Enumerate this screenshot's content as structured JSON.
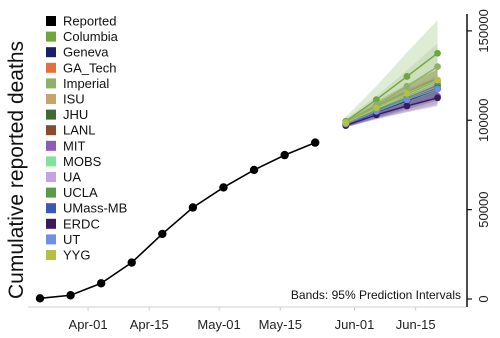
{
  "chart_data": {
    "type": "line",
    "ylabel": "Cumulative reported deaths",
    "xlim": [
      "2020-03-21",
      "2020-06-24"
    ],
    "ylim": [
      0,
      160000
    ],
    "x_ticks": [
      {
        "date": "2020-04-01",
        "label": "Apr-01"
      },
      {
        "date": "2020-04-15",
        "label": "Apr-15"
      },
      {
        "date": "2020-05-01",
        "label": "May-01"
      },
      {
        "date": "2020-05-15",
        "label": "May-15"
      },
      {
        "date": "2020-06-01",
        "label": "Jun-01"
      },
      {
        "date": "2020-06-15",
        "label": "Jun-15"
      }
    ],
    "y_ticks": [
      {
        "value": 0,
        "label": "0"
      },
      {
        "value": 50000,
        "label": "50000"
      },
      {
        "value": 100000,
        "label": "100000"
      },
      {
        "value": 150000,
        "label": "150000"
      }
    ],
    "grid": false,
    "legend_position": "top-left",
    "annotation": "Bands: 95% Prediction Intervals",
    "reported": {
      "name": "Reported",
      "color": "#000000",
      "x": [
        "2020-03-21",
        "2020-03-28",
        "2020-04-04",
        "2020-04-11",
        "2020-04-18",
        "2020-04-25",
        "2020-05-02",
        "2020-05-09",
        "2020-05-16",
        "2020-05-23"
      ],
      "y": [
        400,
        2100,
        8800,
        20400,
        36400,
        51200,
        62400,
        72200,
        80500,
        87500
      ]
    },
    "forecast_x": [
      "2020-05-30",
      "2020-06-06",
      "2020-06-13",
      "2020-06-20"
    ],
    "series": [
      {
        "name": "Columbia",
        "color": "#6ea83c",
        "values": [
          99500,
          111500,
          124500,
          137500
        ],
        "lower": [
          97000,
          104000,
          110000,
          115000
        ],
        "upper": [
          102000,
          119000,
          138000,
          156000
        ]
      },
      {
        "name": "Geneva",
        "color": "#1a1f6b",
        "values": [
          97500,
          104500,
          111000,
          117500
        ],
        "lower": [
          96000,
          101000,
          106000,
          111000
        ],
        "upper": [
          99000,
          108000,
          116000,
          124000
        ]
      },
      {
        "name": "GA_Tech",
        "color": "#e0713a",
        "values": [
          98000,
          106000,
          113500,
          121000
        ],
        "lower": [
          96500,
          102500,
          108000,
          113500
        ],
        "upper": [
          99500,
          109500,
          119000,
          128500
        ]
      },
      {
        "name": "Imperial",
        "color": "#8fb06a",
        "values": [
          99000,
          108500,
          119000,
          130000
        ],
        "lower": [
          97000,
          103500,
          110000,
          117000
        ],
        "upper": [
          101000,
          113500,
          128000,
          143000
        ]
      },
      {
        "name": "ISU",
        "color": "#c7a46a",
        "values": [
          97500,
          105000,
          112000,
          119000
        ],
        "lower": [
          96000,
          101500,
          107000,
          112000
        ],
        "upper": [
          99000,
          108500,
          117000,
          126000
        ]
      },
      {
        "name": "JHU",
        "color": "#3d6b33",
        "values": [
          98500,
          107000,
          114500,
          121500
        ],
        "lower": [
          97000,
          103500,
          109000,
          114500
        ],
        "upper": [
          100000,
          110500,
          120000,
          128500
        ]
      },
      {
        "name": "LANL",
        "color": "#8a4b2e",
        "values": [
          98000,
          106000,
          113500,
          120000
        ],
        "lower": [
          96800,
          103000,
          109500,
          115500
        ],
        "upper": [
          99200,
          109000,
          117500,
          124500
        ]
      },
      {
        "name": "MIT",
        "color": "#8e5cb7",
        "values": [
          97500,
          103500,
          108500,
          113500
        ],
        "lower": [
          96500,
          101000,
          105000,
          109000
        ],
        "upper": [
          98500,
          106000,
          112000,
          118000
        ]
      },
      {
        "name": "MOBS",
        "color": "#7fe39c",
        "values": [
          98500,
          106500,
          114000,
          121500
        ],
        "lower": [
          97000,
          103000,
          109000,
          115000
        ],
        "upper": [
          100000,
          110000,
          119000,
          128000
        ]
      },
      {
        "name": "UA",
        "color": "#c6a1e6",
        "values": [
          98000,
          105500,
          113000,
          120500
        ],
        "lower": [
          96500,
          102000,
          108000,
          114000
        ],
        "upper": [
          99500,
          109000,
          118000,
          127000
        ]
      },
      {
        "name": "UCLA",
        "color": "#5a9b4a",
        "values": [
          98000,
          105500,
          112500,
          119500
        ],
        "lower": [
          96800,
          102500,
          108500,
          114500
        ],
        "upper": [
          99200,
          108500,
          116500,
          124500
        ]
      },
      {
        "name": "UMass-MB",
        "color": "#3e58b5",
        "values": [
          97500,
          104500,
          111500,
          118000
        ],
        "lower": [
          96000,
          101500,
          107000,
          112500
        ],
        "upper": [
          99000,
          107500,
          116000,
          123500
        ]
      },
      {
        "name": "ERDC",
        "color": "#3b1c5a",
        "values": [
          97000,
          103000,
          108000,
          112500
        ],
        "lower": [
          96000,
          100500,
          104500,
          108000
        ],
        "upper": [
          98000,
          105500,
          111500,
          117000
        ]
      },
      {
        "name": "UT",
        "color": "#6e8fe3",
        "values": [
          98000,
          105000,
          111500,
          117500
        ],
        "lower": [
          96500,
          102000,
          107000,
          112000
        ],
        "upper": [
          99500,
          108000,
          116000,
          123000
        ]
      },
      {
        "name": "YYG",
        "color": "#b5bf45",
        "values": [
          98500,
          107000,
          115000,
          122500
        ],
        "lower": [
          97000,
          103500,
          110000,
          116000
        ],
        "upper": [
          100000,
          110500,
          120000,
          129000
        ]
      }
    ]
  }
}
